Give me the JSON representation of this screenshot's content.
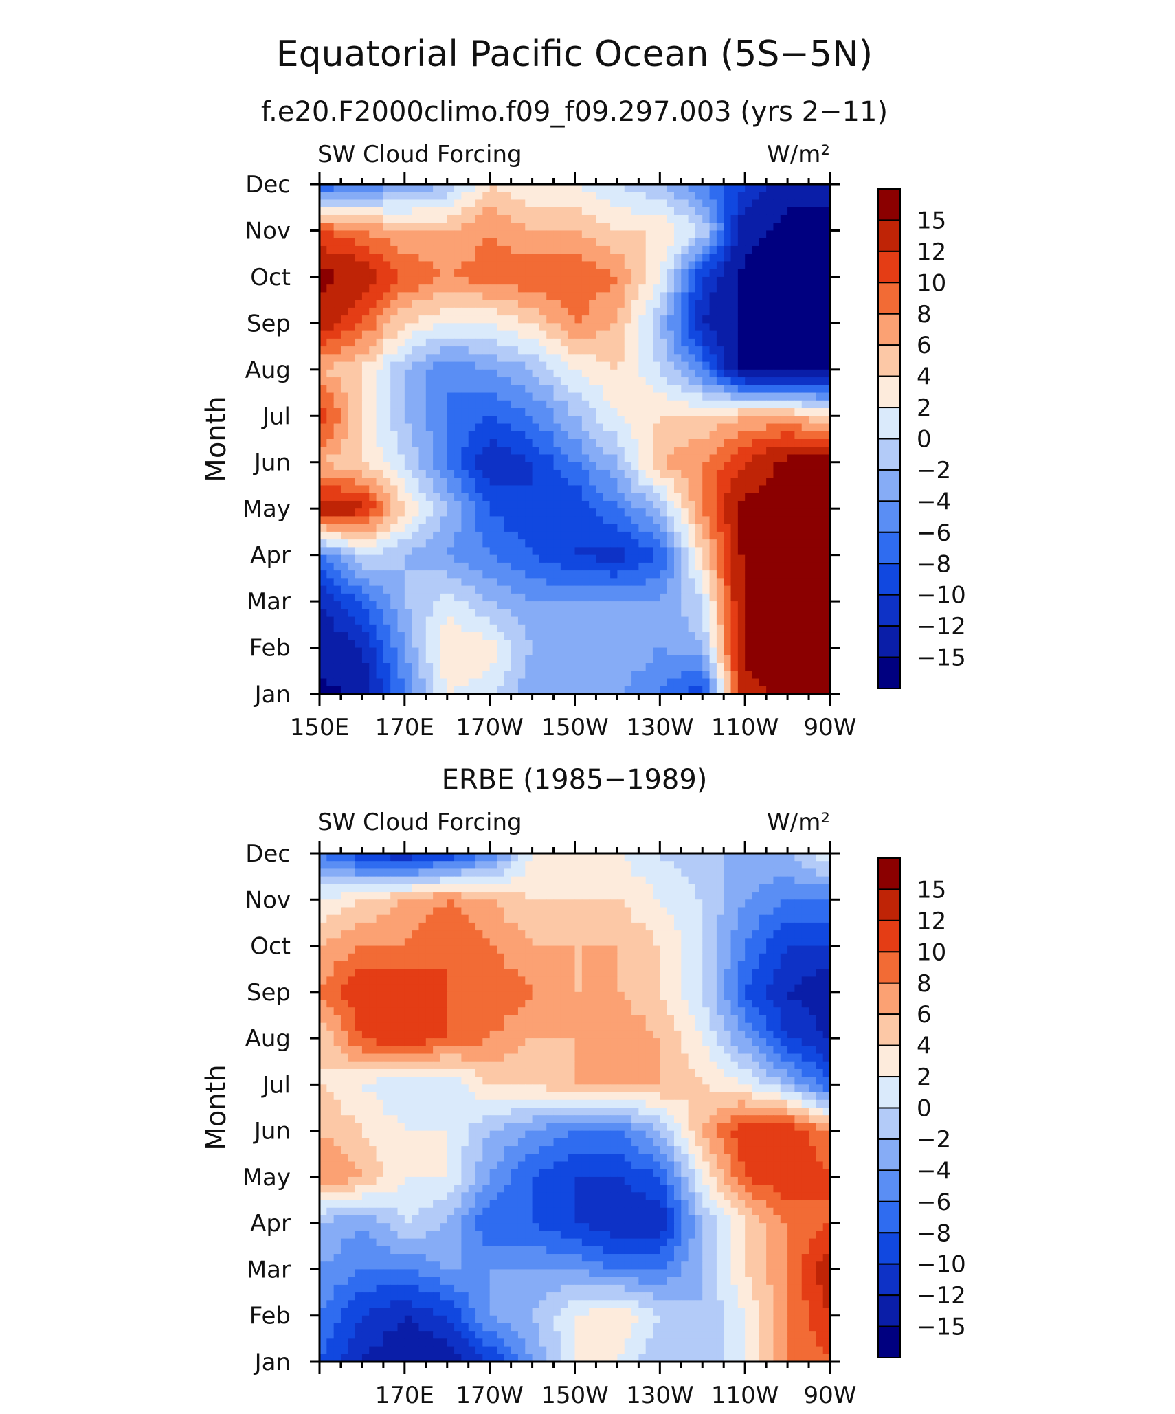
{
  "title": "Equatorial Pacific Ocean (5S−5N)",
  "colors": {
    "levels": [
      "#000080",
      "#0a1ea8",
      "#0e32c6",
      "#1148e0",
      "#2f6cf0",
      "#5a8ef4",
      "#86acf6",
      "#b3cbf8",
      "#daeafb",
      "#fdebdc",
      "#fcc8a6",
      "#fba173",
      "#f26b35",
      "#e43d15",
      "#bf2406",
      "#8b0000"
    ]
  },
  "chart_data": [
    {
      "type": "heatmap",
      "title": "f.e20.F2000climo.f09_f09.297.003 (yrs 2−11)",
      "left_label": "SW Cloud Forcing",
      "right_label": "W/m²",
      "ylabel": "Month",
      "xlabel": "",
      "x_tick_labels": [
        "150E",
        "170E",
        "170W",
        "150W",
        "130W",
        "110W",
        "90W"
      ],
      "x_ticks_lon": [
        150,
        170,
        190,
        210,
        230,
        250,
        270
      ],
      "xlim": [
        150,
        270
      ],
      "y_categories": [
        "Jan",
        "Feb",
        "Mar",
        "Apr",
        "May",
        "Jun",
        "Jul",
        "Aug",
        "Sep",
        "Oct",
        "Nov",
        "Dec"
      ],
      "colorbar_labels": [
        "15",
        "12",
        "10",
        "8",
        "6",
        "4",
        "2",
        "0",
        "−2",
        "−4",
        "−6",
        "−8",
        "−10",
        "−12",
        "−15"
      ],
      "levels": [
        -15,
        -12,
        -10,
        -8,
        -6,
        -4,
        -2,
        0,
        2,
        4,
        6,
        8,
        10,
        12,
        15
      ],
      "x": [
        150,
        160,
        170,
        180,
        190,
        200,
        210,
        220,
        230,
        240,
        250,
        260,
        270
      ],
      "z": [
        [
          -16,
          -14,
          -6,
          2,
          1,
          -4,
          -4,
          -4,
          -6,
          -10,
          14,
          16,
          16
        ],
        [
          -14,
          -12,
          -4,
          4,
          3,
          -2,
          -2,
          -2,
          -4,
          -2,
          16,
          16,
          16
        ],
        [
          -12,
          -8,
          -2,
          1,
          -2,
          -4,
          -4,
          -4,
          -4,
          0,
          16,
          16,
          16
        ],
        [
          -6,
          0,
          -2,
          -4,
          -6,
          -8,
          -10,
          -11,
          -8,
          4,
          16,
          16,
          16
        ],
        [
          14,
          13,
          4,
          -2,
          -8,
          -10,
          -10,
          -6,
          -2,
          8,
          16,
          16,
          16
        ],
        [
          6,
          4,
          0,
          -6,
          -12,
          -10,
          -6,
          -2,
          6,
          8,
          12,
          16,
          16
        ],
        [
          12,
          4,
          -2,
          -6,
          -8,
          -6,
          -2,
          2,
          4,
          4,
          6,
          6,
          4
        ],
        [
          6,
          4,
          -2,
          -6,
          -4,
          -2,
          2,
          4,
          0,
          -6,
          -16,
          -16,
          -16
        ],
        [
          14,
          10,
          4,
          2,
          2,
          4,
          8,
          6,
          -2,
          -12,
          -16,
          -16,
          -16
        ],
        [
          16,
          14,
          10,
          8,
          9,
          10,
          10,
          8,
          2,
          -10,
          -16,
          -16,
          -16
        ],
        [
          10,
          8,
          6,
          6,
          8,
          6,
          6,
          4,
          4,
          0,
          -14,
          -16,
          -16
        ],
        [
          -8,
          -6,
          -4,
          -2,
          4,
          2,
          2,
          0,
          -2,
          -6,
          -10,
          -14,
          -14
        ]
      ]
    },
    {
      "type": "heatmap",
      "title": "ERBE (1985−1989)",
      "left_label": "SW Cloud Forcing",
      "right_label": "W/m²",
      "ylabel": "Month",
      "xlabel": "",
      "x_tick_labels": [
        "170E",
        "170W",
        "150W",
        "130W",
        "110W",
        "90W"
      ],
      "x_ticks_lon": [
        170,
        190,
        210,
        230,
        250,
        270
      ],
      "xlim": [
        150,
        270
      ],
      "y_categories": [
        "Jan",
        "Feb",
        "Mar",
        "Apr",
        "May",
        "Jun",
        "Jul",
        "Aug",
        "Sep",
        "Oct",
        "Nov",
        "Dec"
      ],
      "colorbar_labels": [
        "15",
        "12",
        "10",
        "8",
        "6",
        "4",
        "2",
        "0",
        "−2",
        "−4",
        "−6",
        "−8",
        "−10",
        "−12",
        "−15"
      ],
      "levels": [
        -15,
        -12,
        -10,
        -8,
        -6,
        -4,
        -2,
        0,
        2,
        4,
        6,
        8,
        10,
        12,
        15
      ],
      "x": [
        150,
        160,
        170,
        180,
        190,
        200,
        210,
        220,
        230,
        240,
        250,
        260,
        270
      ],
      "z": [
        [
          -8,
          -12,
          -14,
          -14,
          -10,
          -4,
          2,
          2,
          -2,
          -2,
          2,
          8,
          10
        ],
        [
          -6,
          -10,
          -12,
          -10,
          -4,
          -2,
          2,
          4,
          0,
          -2,
          2,
          8,
          12
        ],
        [
          -4,
          -6,
          -6,
          -4,
          -4,
          -4,
          -4,
          -6,
          -6,
          -2,
          4,
          8,
          14
        ],
        [
          -2,
          -4,
          0,
          -2,
          -8,
          -8,
          -10,
          -12,
          -12,
          -2,
          4,
          8,
          10
        ],
        [
          8,
          6,
          2,
          2,
          -4,
          -8,
          -10,
          -10,
          -8,
          2,
          10,
          12,
          10
        ],
        [
          6,
          4,
          2,
          2,
          -2,
          -4,
          -6,
          -6,
          -2,
          6,
          12,
          12,
          8
        ],
        [
          4,
          2,
          0,
          0,
          4,
          4,
          6,
          6,
          6,
          4,
          2,
          -2,
          -8
        ],
        [
          4,
          10,
          12,
          10,
          8,
          6,
          6,
          8,
          6,
          2,
          -4,
          -10,
          -12
        ],
        [
          8,
          12,
          12,
          10,
          10,
          8,
          6,
          6,
          4,
          0,
          -8,
          -12,
          -14
        ],
        [
          6,
          8,
          8,
          10,
          8,
          6,
          6,
          6,
          4,
          0,
          -6,
          -10,
          -10
        ],
        [
          2,
          4,
          6,
          8,
          6,
          4,
          4,
          4,
          2,
          0,
          -4,
          -6,
          -6
        ],
        [
          -6,
          -10,
          -12,
          -10,
          -6,
          2,
          2,
          2,
          0,
          -2,
          -2,
          -2,
          2
        ]
      ]
    }
  ]
}
